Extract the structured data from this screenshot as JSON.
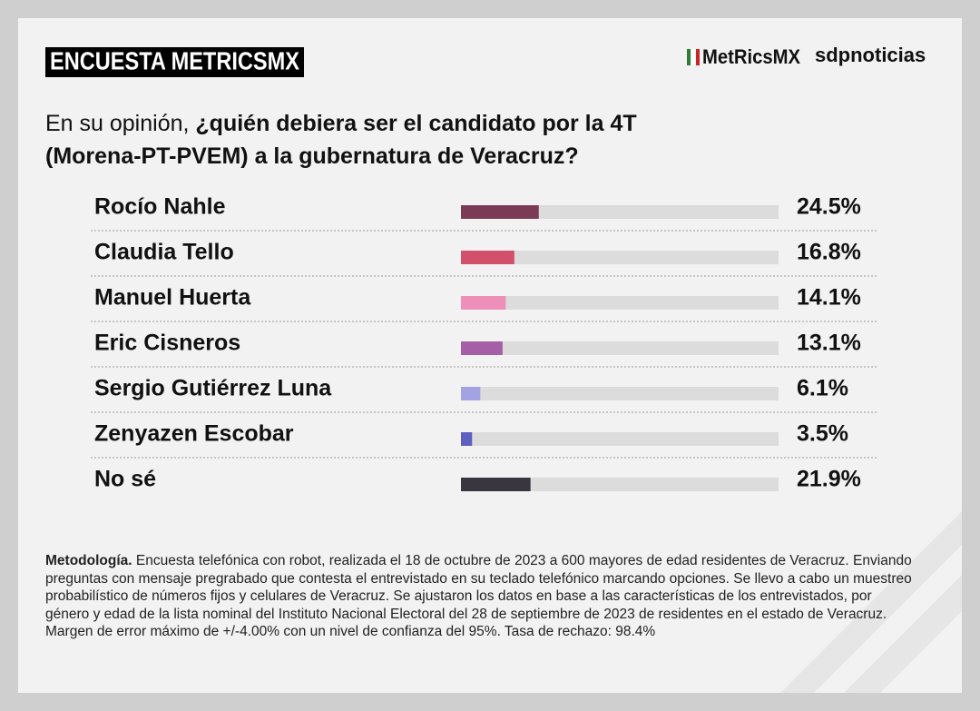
{
  "header": {
    "title": "ENCUESTA METRICSMX",
    "logo_left": "MetRicsMX",
    "logo_right": "sdpnoticias"
  },
  "question": {
    "lead": "En su opinión,",
    "bold": "¿quién debiera ser el candidato por la 4T (Morena-PT-PVEM) a la gubernatura de Veracruz?"
  },
  "chart_data": {
    "type": "bar",
    "orientation": "horizontal",
    "categories": [
      "Rocío Nahle",
      "Claudia Tello",
      "Manuel Huerta",
      "Eric Cisneros",
      "Sergio Gutiérrez Luna",
      "Zenyazen Escobar",
      "No sé"
    ],
    "values": [
      24.5,
      16.8,
      14.1,
      13.1,
      6.1,
      3.5,
      21.9
    ],
    "value_labels": [
      "24.5%",
      "16.8%",
      "14.1%",
      "13.1%",
      "6.1%",
      "3.5%",
      "21.9%"
    ],
    "colors": [
      "#7b3b56",
      "#d2506c",
      "#ee8fb9",
      "#a45fa6",
      "#a3a3e3",
      "#5f5fc2",
      "#3a3640"
    ],
    "track_color": "#dcdcdc",
    "xlim": [
      0,
      100
    ]
  },
  "methodology": {
    "label": "Metodología.",
    "text": "Encuesta telefónica con robot, realizada el 18 de octubre de 2023 a 600 mayores de edad residentes de Veracruz. Enviando preguntas con mensaje pregrabado que contesta el entrevistado en su teclado telefónico marcando opciones. Se llevo a cabo un muestreo probabilístico de números fijos y celulares de Veracruz. Se ajustaron los datos en base a las características de los entrevistados, por género y edad de la lista nominal del Instituto Nacional Electoral del 28 de septiembre de 2023 de residentes en el estado de Veracruz. Margen de error máximo de +/-4.00% con un nivel de confianza del 95%. Tasa de rechazo: 98.4%"
  }
}
